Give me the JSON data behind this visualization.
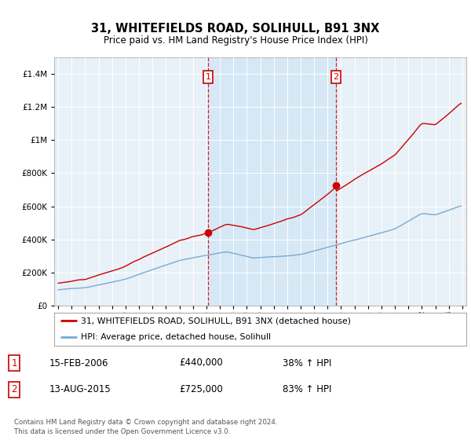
{
  "title": "31, WHITEFIELDS ROAD, SOLIHULL, B91 3NX",
  "subtitle": "Price paid vs. HM Land Registry's House Price Index (HPI)",
  "hpi_label": "HPI: Average price, detached house, Solihull",
  "property_label": "31, WHITEFIELDS ROAD, SOLIHULL, B91 3NX (detached house)",
  "sale1_date": "15-FEB-2006",
  "sale1_price": 440000,
  "sale1_hpi": "38% ↑ HPI",
  "sale2_date": "13-AUG-2015",
  "sale2_price": 725000,
  "sale2_hpi": "83% ↑ HPI",
  "footer": "Contains HM Land Registry data © Crown copyright and database right 2024.\nThis data is licensed under the Open Government Licence v3.0.",
  "red_color": "#cc0000",
  "blue_color": "#7aaad0",
  "shade_color": "#d6e8f5",
  "bg_color": "#e8f0f8",
  "ylim_max": 1500000,
  "sale1_year": 2006.12,
  "sale2_year": 2015.62
}
